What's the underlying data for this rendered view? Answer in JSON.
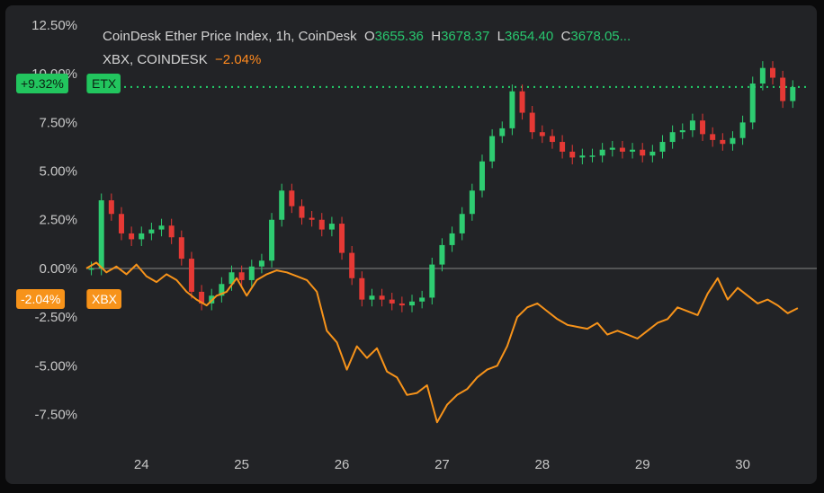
{
  "legend": {
    "line1_name": "CoinDesk Ether Price Index, 1h, CoinDesk",
    "o_label": "O",
    "o_value": "3655.36",
    "h_label": "H",
    "h_value": "3678.37",
    "l_label": "L",
    "l_value": "3654.40",
    "c_label": "C",
    "c_value": "3678.05...",
    "line2_name": "XBX, COINDESK",
    "line2_value": "−2.04%"
  },
  "badges": {
    "etx_value": "+9.32%",
    "etx_name": "ETX",
    "xbx_value": "-2.04%",
    "xbx_name": "XBX"
  },
  "colors": {
    "up": "#2ecc71",
    "down": "#e53935",
    "xbx": "#f7931a",
    "etx_line": "#22d36a",
    "bg": "#222326",
    "zero": "#7a7a7a"
  },
  "chart_data": {
    "type": "line",
    "title": "CoinDesk Ether Price Index, 1h, CoinDesk",
    "xlabel": "",
    "ylabel": "",
    "x_ticks": [
      "24",
      "25",
      "26",
      "27",
      "28",
      "29",
      "30"
    ],
    "x_range": [
      23.45,
      30.65
    ],
    "y_ticks": [
      "12.50%",
      "10.00%",
      "7.50%",
      "5.00%",
      "2.50%",
      "0.00%",
      "-2.50%",
      "-5.00%",
      "-7.50%"
    ],
    "ylim": [
      -9.0,
      12.5
    ],
    "grid": false,
    "series": [
      {
        "name": "ETX",
        "kind": "candlestick",
        "last_value": 9.32,
        "x": [
          23.5,
          23.6,
          23.7,
          23.8,
          23.9,
          24.0,
          24.1,
          24.2,
          24.3,
          24.4,
          24.5,
          24.6,
          24.7,
          24.8,
          24.9,
          25.0,
          25.1,
          25.2,
          25.3,
          25.4,
          25.5,
          25.6,
          25.7,
          25.8,
          25.9,
          26.0,
          26.1,
          26.2,
          26.3,
          26.4,
          26.5,
          26.6,
          26.7,
          26.8,
          26.9,
          27.0,
          27.1,
          27.2,
          27.3,
          27.4,
          27.5,
          27.6,
          27.7,
          27.8,
          27.9,
          28.0,
          28.1,
          28.2,
          28.3,
          28.4,
          28.5,
          28.6,
          28.7,
          28.8,
          28.9,
          29.0,
          29.1,
          29.2,
          29.3,
          29.4,
          29.5,
          29.6,
          29.7,
          29.8,
          29.9,
          30.0,
          30.1,
          30.2,
          30.3,
          30.4,
          30.5
        ],
        "y": [
          0.0,
          3.5,
          2.8,
          1.8,
          1.5,
          1.8,
          2.0,
          2.2,
          1.6,
          0.5,
          -1.2,
          -1.8,
          -1.4,
          -0.8,
          -0.2,
          -0.6,
          0.1,
          0.4,
          2.5,
          4.0,
          3.2,
          2.6,
          2.5,
          2.0,
          2.3,
          0.8,
          -0.5,
          -1.6,
          -1.4,
          -1.6,
          -1.8,
          -1.9,
          -1.7,
          -1.5,
          0.2,
          1.2,
          1.8,
          2.8,
          4.0,
          5.5,
          6.8,
          7.2,
          9.1,
          8.0,
          7.0,
          6.8,
          6.5,
          6.0,
          5.7,
          5.8,
          5.8,
          6.1,
          6.2,
          6.0,
          6.1,
          5.8,
          6.0,
          6.5,
          7.0,
          7.1,
          7.6,
          6.9,
          6.6,
          6.4,
          6.7,
          7.5,
          9.5,
          10.3,
          9.8,
          8.6,
          9.32
        ]
      },
      {
        "name": "XBX",
        "last_value": -2.04,
        "x": [
          23.45,
          23.55,
          23.65,
          23.75,
          23.85,
          23.95,
          24.05,
          24.15,
          24.25,
          24.35,
          24.45,
          24.55,
          24.65,
          24.75,
          24.85,
          24.95,
          25.05,
          25.15,
          25.25,
          25.35,
          25.45,
          25.55,
          25.65,
          25.75,
          25.85,
          25.95,
          26.05,
          26.15,
          26.25,
          26.35,
          26.45,
          26.55,
          26.65,
          26.75,
          26.85,
          26.95,
          27.05,
          27.15,
          27.25,
          27.35,
          27.45,
          27.55,
          27.65,
          27.75,
          27.85,
          27.95,
          28.05,
          28.15,
          28.25,
          28.35,
          28.45,
          28.55,
          28.65,
          28.75,
          28.85,
          28.95,
          29.05,
          29.15,
          29.25,
          29.35,
          29.45,
          29.55,
          29.65,
          29.75,
          29.85,
          29.95,
          30.05,
          30.15,
          30.25,
          30.35,
          30.45,
          30.55
        ],
        "y": [
          0.0,
          0.3,
          -0.2,
          0.1,
          -0.3,
          0.2,
          -0.4,
          -0.7,
          -0.3,
          -0.6,
          -1.2,
          -1.6,
          -1.9,
          -1.4,
          -1.2,
          -0.5,
          -1.4,
          -0.6,
          -0.3,
          -0.1,
          -0.2,
          -0.4,
          -0.6,
          -1.2,
          -3.2,
          -3.8,
          -5.2,
          -4.0,
          -4.6,
          -4.1,
          -5.3,
          -5.6,
          -6.5,
          -6.4,
          -6.0,
          -7.9,
          -7.0,
          -6.5,
          -6.2,
          -5.6,
          -5.2,
          -5.0,
          -4.0,
          -2.5,
          -2.0,
          -1.8,
          -2.2,
          -2.6,
          -2.9,
          -3.0,
          -3.1,
          -2.8,
          -3.4,
          -3.2,
          -3.4,
          -3.6,
          -3.2,
          -2.8,
          -2.6,
          -2.0,
          -2.2,
          -2.4,
          -1.3,
          -0.5,
          -1.6,
          -1.0,
          -1.4,
          -1.8,
          -1.6,
          -1.9,
          -2.3,
          -2.04
        ]
      }
    ]
  }
}
